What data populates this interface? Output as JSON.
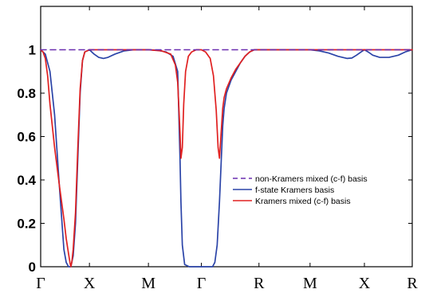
{
  "chart_data": {
    "type": "line",
    "title": "",
    "xlabel": "",
    "ylabel": "",
    "x_range": [
      0,
      8
    ],
    "ylim": [
      0,
      1.2
    ],
    "y_ticks": [
      0,
      0.2,
      0.4,
      0.6,
      0.8,
      1
    ],
    "y_tick_labels": [
      "0",
      "0.2",
      "0.4",
      "0.6",
      "0.8",
      "1"
    ],
    "x_ticks": [
      {
        "pos": 0,
        "label": "Γ"
      },
      {
        "pos": 1,
        "label": "X"
      },
      {
        "pos": 2,
        "label": "M"
      },
      {
        "pos": 3,
        "label": "Γ"
      },
      {
        "pos": 4,
        "label": "R"
      },
      {
        "pos": 5,
        "label": "M"
      },
      {
        "pos": 6,
        "label": "X"
      },
      {
        "pos": 7,
        "label": "R"
      }
    ],
    "x_tick_positions_data": [
      0,
      1.05,
      2.32,
      3.46,
      4.7,
      5.8,
      6.97,
      8.0
    ],
    "grid": false,
    "legend_position": "center-right",
    "series": [
      {
        "name": "non-Kramers mixed (c-f) basis",
        "color": "#6a2fb0",
        "style": "dashed",
        "x": [
          0,
          8
        ],
        "y": [
          1,
          1
        ]
      },
      {
        "name": "f-state Kramers basis",
        "color": "#2b44a8",
        "style": "solid",
        "x": [
          0,
          0.1,
          0.2,
          0.3,
          0.4,
          0.5,
          0.55,
          0.6,
          0.65,
          0.7,
          0.75,
          0.8,
          0.85,
          0.9,
          0.95,
          1.05,
          1.15,
          1.25,
          1.35,
          1.45,
          1.6,
          1.8,
          2.0,
          2.2,
          2.32,
          2.5,
          2.7,
          2.85,
          2.95,
          3.0,
          3.02,
          3.05,
          3.1,
          3.2,
          3.3,
          3.45,
          3.6,
          3.7,
          3.75,
          3.8,
          3.85,
          3.9,
          3.92,
          3.95,
          4.0,
          4.1,
          4.2,
          4.3,
          4.4,
          4.5,
          4.6,
          4.7,
          4.9,
          5.2,
          5.5,
          5.8,
          6.0,
          6.2,
          6.4,
          6.6,
          6.7,
          6.8,
          6.9,
          6.97,
          7.05,
          7.15,
          7.3,
          7.5,
          7.7,
          7.85,
          8.0
        ],
        "y": [
          1,
          0.98,
          0.9,
          0.7,
          0.38,
          0.08,
          0.02,
          0.0,
          0.0,
          0.05,
          0.2,
          0.5,
          0.8,
          0.95,
          0.99,
          1.0,
          0.98,
          0.965,
          0.96,
          0.965,
          0.98,
          0.995,
          1.0,
          1.0,
          1.0,
          0.998,
          0.99,
          0.97,
          0.9,
          0.5,
          0.3,
          0.1,
          0.01,
          0.0,
          0.0,
          0.0,
          0.0,
          0.0,
          0.02,
          0.1,
          0.3,
          0.55,
          0.65,
          0.73,
          0.8,
          0.86,
          0.9,
          0.94,
          0.97,
          0.99,
          1.0,
          1.0,
          1.0,
          1.0,
          1.0,
          1.0,
          0.995,
          0.985,
          0.97,
          0.96,
          0.962,
          0.975,
          0.99,
          1.0,
          0.99,
          0.975,
          0.965,
          0.965,
          0.975,
          0.99,
          1.0
        ]
      },
      {
        "name": "Kramers mixed (c-f) basis",
        "color": "#e02020",
        "style": "solid",
        "x": [
          0,
          0.05,
          0.1,
          0.15,
          0.2,
          0.3,
          0.4,
          0.5,
          0.55,
          0.6,
          0.63,
          0.65,
          0.67,
          0.7,
          0.75,
          0.8,
          0.85,
          0.9,
          0.95,
          1.05,
          1.2,
          1.5,
          2.0,
          2.32,
          2.6,
          2.8,
          2.9,
          2.95,
          3.0,
          3.02,
          3.05,
          3.08,
          3.12,
          3.18,
          3.25,
          3.35,
          3.46,
          3.55,
          3.65,
          3.72,
          3.78,
          3.82,
          3.85,
          3.88,
          3.92,
          3.95,
          4.0,
          4.1,
          4.2,
          4.3,
          4.4,
          4.5,
          4.6,
          4.7,
          5.0,
          5.5,
          6.0,
          6.5,
          7.0,
          7.5,
          8.0
        ],
        "y": [
          1,
          0.99,
          0.96,
          0.88,
          0.75,
          0.55,
          0.38,
          0.22,
          0.13,
          0.06,
          0.02,
          0.0,
          0.02,
          0.08,
          0.25,
          0.55,
          0.82,
          0.95,
          0.99,
          1.0,
          1.0,
          1.0,
          1.0,
          1.0,
          0.995,
          0.98,
          0.93,
          0.85,
          0.62,
          0.5,
          0.55,
          0.75,
          0.9,
          0.97,
          0.99,
          1.0,
          1.0,
          0.99,
          0.96,
          0.88,
          0.72,
          0.55,
          0.5,
          0.6,
          0.73,
          0.78,
          0.82,
          0.87,
          0.91,
          0.94,
          0.97,
          0.99,
          1.0,
          1.0,
          1.0,
          1.0,
          1.0,
          1.0,
          1.0,
          1.0,
          1.0
        ]
      }
    ]
  }
}
